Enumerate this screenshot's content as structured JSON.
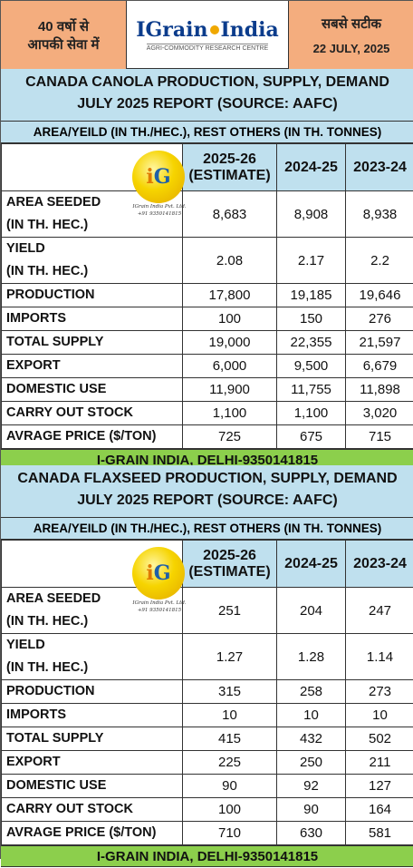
{
  "header": {
    "left_line1": "40 वर्षो से",
    "left_line2": "आपकी सेवा में",
    "brand_pre": "IGrain",
    "brand_post": "India",
    "brand_sub": "AGRI-COMMODITY RESEARCH CENTRE",
    "right_line1": "सबसे सटीक",
    "right_line2": "22 JULY, 2025"
  },
  "logo": {
    "text_i": "i",
    "text_g": "G",
    "caption1": "IGrain India Pvt. Ltd.",
    "caption2": "+91 9350141815"
  },
  "canola": {
    "title_line1": "CANADA CANOLA PRODUCTION, SUPPLY, DEMAND",
    "title_line2": "JULY 2025 REPORT (SOURCE: AAFC)",
    "units": "AREA/YEILD (IN TH./HEC.), REST OTHERS (IN TH. TONNES)",
    "columns": [
      "2025-26 (ESTIMATE)",
      "2024-25",
      "2023-24"
    ],
    "rows": [
      {
        "label1": "AREA SEEDED",
        "label2": "(IN TH. HEC.)",
        "v": [
          "8,683",
          "8,908",
          "8,938"
        ]
      },
      {
        "label1": "YIELD",
        "label2": "(IN TH. HEC.)",
        "v": [
          "2.08",
          "2.17",
          "2.2"
        ]
      },
      {
        "label1": "PRODUCTION",
        "label2": "",
        "v": [
          "17,800",
          "19,185",
          "19,646"
        ]
      },
      {
        "label1": "IMPORTS",
        "label2": "",
        "v": [
          "100",
          "150",
          "276"
        ]
      },
      {
        "label1": "TOTAL SUPPLY",
        "label2": "",
        "v": [
          "19,000",
          "22,355",
          "21,597"
        ]
      },
      {
        "label1": "EXPORT",
        "label2": "",
        "v": [
          "6,000",
          "9,500",
          "6,679"
        ]
      },
      {
        "label1": "DOMESTIC USE",
        "label2": "",
        "v": [
          "11,900",
          "11,755",
          "11,898"
        ]
      },
      {
        "label1": "CARRY OUT STOCK",
        "label2": "",
        "v": [
          "1,100",
          "1,100",
          "3,020"
        ]
      },
      {
        "label1": "AVRAGE PRICE ($/TON)",
        "label2": "",
        "v": [
          "725",
          "675",
          "715"
        ]
      }
    ],
    "footer": "I-GRAIN INDIA, DELHI-9350141815"
  },
  "flaxseed": {
    "title_line1": "CANADA FLAXSEED PRODUCTION, SUPPLY, DEMAND",
    "title_line2": "JULY 2025 REPORT (SOURCE: AAFC)",
    "units": "AREA/YEILD (IN TH./HEC.), REST OTHERS (IN TH. TONNES)",
    "columns": [
      "2025-26 (ESTIMATE)",
      "2024-25",
      "2023-24"
    ],
    "rows": [
      {
        "label1": "AREA SEEDED",
        "label2": "(IN TH. HEC.)",
        "v": [
          "251",
          "204",
          "247"
        ]
      },
      {
        "label1": "YIELD",
        "label2": "(IN TH. HEC.)",
        "v": [
          "1.27",
          "1.28",
          "1.14"
        ]
      },
      {
        "label1": "PRODUCTION",
        "label2": "",
        "v": [
          "315",
          "258",
          "273"
        ]
      },
      {
        "label1": "IMPORTS",
        "label2": "",
        "v": [
          "10",
          "10",
          "10"
        ]
      },
      {
        "label1": "TOTAL SUPPLY",
        "label2": "",
        "v": [
          "415",
          "432",
          "502"
        ]
      },
      {
        "label1": "EXPORT",
        "label2": "",
        "v": [
          "225",
          "250",
          "211"
        ]
      },
      {
        "label1": "DOMESTIC USE",
        "label2": "",
        "v": [
          "90",
          "92",
          "127"
        ]
      },
      {
        "label1": "CARRY OUT STOCK",
        "label2": "",
        "v": [
          "100",
          "90",
          "164"
        ]
      },
      {
        "label1": "AVRAGE PRICE ($/TON)",
        "label2": "",
        "v": [
          "710",
          "630",
          "581"
        ]
      }
    ],
    "footer": "I-GRAIN INDIA, DELHI-9350141815"
  }
}
